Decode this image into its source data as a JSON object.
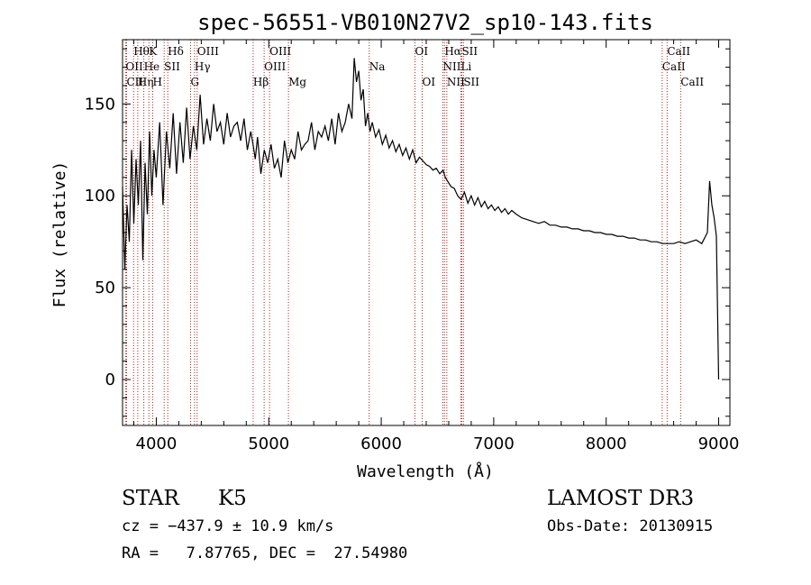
{
  "chart_data": {
    "type": "line",
    "title": "spec-56551-VB010N27V2_sp10-143.fits",
    "xlabel": "Wavelength (Å)",
    "ylabel": "Flux (relative)",
    "xlim": [
      3700,
      9100
    ],
    "ylim": [
      -25,
      185
    ],
    "xticks": [
      4000,
      5000,
      6000,
      7000,
      8000,
      9000
    ],
    "yticks": [
      0,
      50,
      100,
      150
    ],
    "series": [
      {
        "name": "flux",
        "x": [
          3700,
          3720,
          3740,
          3760,
          3780,
          3800,
          3820,
          3840,
          3860,
          3880,
          3900,
          3920,
          3940,
          3960,
          3980,
          4000,
          4030,
          4060,
          4090,
          4120,
          4150,
          4180,
          4210,
          4240,
          4270,
          4300,
          4330,
          4360,
          4390,
          4420,
          4450,
          4480,
          4510,
          4540,
          4570,
          4600,
          4630,
          4660,
          4690,
          4720,
          4750,
          4780,
          4810,
          4840,
          4860,
          4880,
          4900,
          4930,
          4960,
          4990,
          5020,
          5050,
          5080,
          5110,
          5140,
          5170,
          5200,
          5230,
          5260,
          5290,
          5320,
          5350,
          5380,
          5410,
          5440,
          5470,
          5500,
          5530,
          5560,
          5590,
          5620,
          5650,
          5680,
          5710,
          5740,
          5760,
          5780,
          5800,
          5820,
          5840,
          5860,
          5880,
          5900,
          5920,
          5950,
          5980,
          6010,
          6040,
          6070,
          6100,
          6130,
          6160,
          6190,
          6220,
          6250,
          6280,
          6310,
          6340,
          6370,
          6400,
          6430,
          6460,
          6490,
          6520,
          6550,
          6570,
          6590,
          6620,
          6650,
          6680,
          6710,
          6740,
          6770,
          6800,
          6830,
          6860,
          6890,
          6920,
          6950,
          6980,
          7010,
          7040,
          7070,
          7100,
          7130,
          7160,
          7200,
          7250,
          7300,
          7350,
          7400,
          7450,
          7500,
          7550,
          7600,
          7650,
          7700,
          7750,
          7800,
          7850,
          7900,
          7950,
          8000,
          8050,
          8100,
          8150,
          8200,
          8250,
          8300,
          8350,
          8400,
          8450,
          8500,
          8550,
          8600,
          8650,
          8700,
          8750,
          8800,
          8850,
          8900,
          8920,
          8940,
          8960,
          8980,
          9000
        ],
        "values": [
          105,
          60,
          95,
          75,
          125,
          85,
          120,
          95,
          130,
          65,
          118,
          90,
          135,
          100,
          125,
          110,
          140,
          95,
          135,
          115,
          145,
          112,
          140,
          118,
          148,
          120,
          138,
          125,
          155,
          128,
          142,
          130,
          150,
          135,
          140,
          128,
          145,
          132,
          138,
          140,
          130,
          142,
          125,
          135,
          128,
          120,
          132,
          112,
          125,
          118,
          128,
          115,
          120,
          110,
          130,
          118,
          125,
          120,
          135,
          125,
          128,
          130,
          140,
          125,
          135,
          132,
          138,
          130,
          142,
          128,
          145,
          135,
          140,
          150,
          142,
          175,
          162,
          168,
          152,
          158,
          138,
          145,
          135,
          140,
          132,
          136,
          128,
          133,
          126,
          130,
          124,
          128,
          122,
          126,
          120,
          125,
          118,
          121,
          119,
          117,
          116,
          114,
          115,
          112,
          114,
          110,
          108,
          105,
          104,
          100,
          98,
          102,
          96,
          100,
          95,
          99,
          94,
          97,
          93,
          95,
          92,
          94,
          91,
          93,
          90,
          92,
          90,
          88,
          87,
          86,
          85,
          86,
          84,
          84,
          83,
          83,
          82,
          82,
          81,
          81,
          80,
          80,
          79,
          79,
          78,
          78,
          77,
          77,
          76,
          76,
          75,
          75,
          74,
          74,
          74,
          75,
          74,
          75,
          76,
          74,
          80,
          108,
          95,
          88,
          78,
          0
        ]
      }
    ],
    "line_labels": [
      {
        "text": "Hθ",
        "wave": 3798,
        "row": 1
      },
      {
        "text": "K",
        "wave": 3934,
        "row": 1
      },
      {
        "text": "Hδ",
        "wave": 4102,
        "row": 1
      },
      {
        "text": "OIII",
        "wave": 4363,
        "row": 1
      },
      {
        "text": "OIII",
        "wave": 5007,
        "row": 1
      },
      {
        "text": "OI",
        "wave": 6300,
        "row": 1
      },
      {
        "text": "Hα",
        "wave": 6563,
        "row": 1
      },
      {
        "text": "SII",
        "wave": 6716,
        "row": 1
      },
      {
        "text": "CaII",
        "wave": 8542,
        "row": 1
      },
      {
        "text": "OII",
        "wave": 3727,
        "row": 2
      },
      {
        "text": "He",
        "wave": 3889,
        "row": 2
      },
      {
        "text": "SII",
        "wave": 4070,
        "row": 2
      },
      {
        "text": "Hγ",
        "wave": 4340,
        "row": 2
      },
      {
        "text": "OIII",
        "wave": 4959,
        "row": 2
      },
      {
        "text": "Na",
        "wave": 5893,
        "row": 2
      },
      {
        "text": "NII",
        "wave": 6548,
        "row": 2
      },
      {
        "text": "Li",
        "wave": 6708,
        "row": 2
      },
      {
        "text": "CaII",
        "wave": 8498,
        "row": 2
      },
      {
        "text": "CII",
        "wave": 3736,
        "row": 3
      },
      {
        "text": "Hη",
        "wave": 3835,
        "row": 3
      },
      {
        "text": "H",
        "wave": 3968,
        "row": 3
      },
      {
        "text": "G",
        "wave": 4305,
        "row": 3
      },
      {
        "text": "Hβ",
        "wave": 4861,
        "row": 3
      },
      {
        "text": "Mg",
        "wave": 5175,
        "row": 3
      },
      {
        "text": "OI",
        "wave": 6364,
        "row": 3
      },
      {
        "text": "NII",
        "wave": 6583,
        "row": 3
      },
      {
        "text": "SII",
        "wave": 6731,
        "row": 3
      },
      {
        "text": "CaII",
        "wave": 8662,
        "row": 3
      }
    ],
    "line_color": "#b22222"
  },
  "info": {
    "class": "STAR",
    "subclass": "K5",
    "survey": "LAMOST DR3",
    "cz": "cz = −437.9 ± 10.9 km/s",
    "obs_date": "Obs-Date: 20130915",
    "radec": "RA =   7.87765, DEC =  27.54980"
  }
}
